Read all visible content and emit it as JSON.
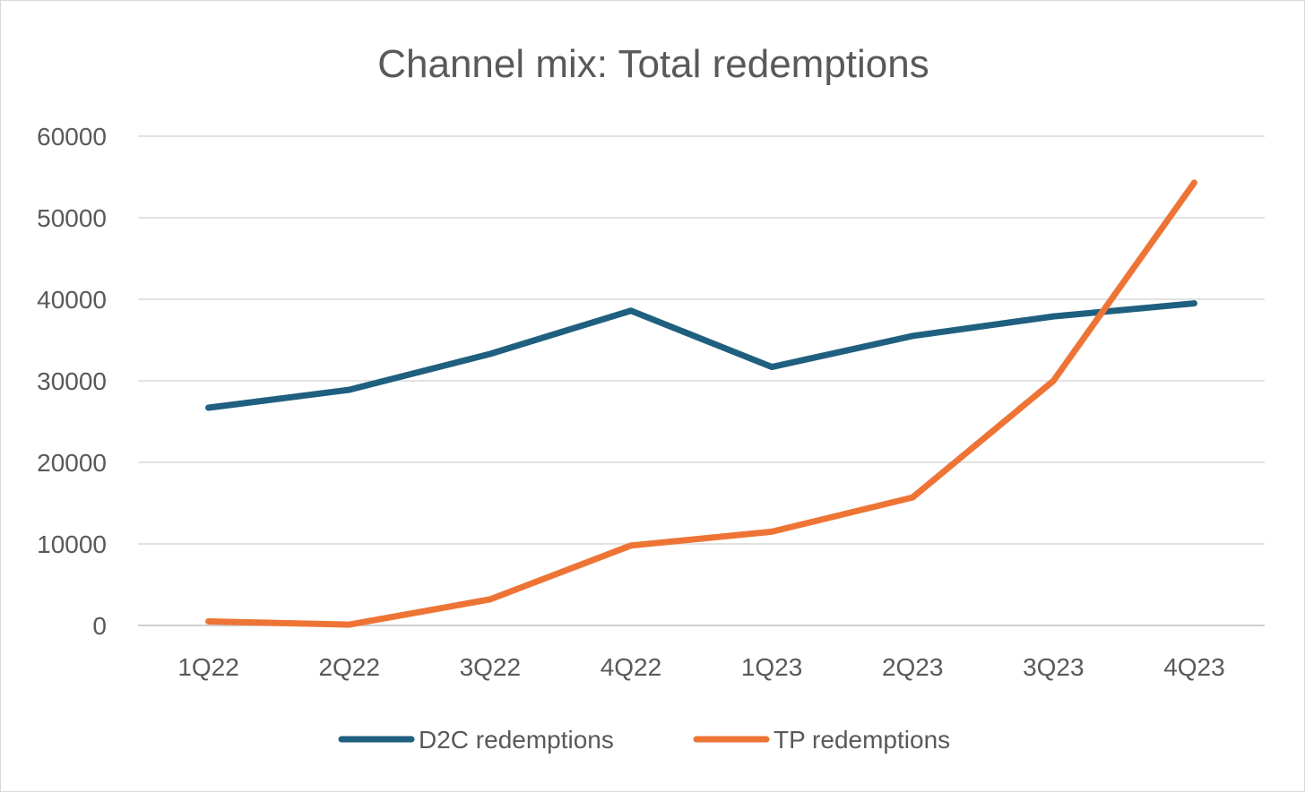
{
  "chart_data": {
    "type": "line",
    "title": "Channel mix: Total redemptions",
    "xlabel": "",
    "ylabel": "",
    "categories": [
      "1Q22",
      "2Q22",
      "3Q22",
      "4Q22",
      "1Q23",
      "2Q23",
      "3Q23",
      "4Q23"
    ],
    "ylim": [
      0,
      60000
    ],
    "yticks": [
      0,
      10000,
      20000,
      30000,
      40000,
      50000,
      60000
    ],
    "grid": true,
    "legend_position": "bottom",
    "series": [
      {
        "name": "D2C redemptions",
        "color": "#1f5f7f",
        "values": [
          26700,
          28900,
          33300,
          38600,
          31700,
          35500,
          37900,
          39500
        ]
      },
      {
        "name": "TP redemptions",
        "color": "#ee7435",
        "values": [
          500,
          100,
          3200,
          9800,
          11500,
          15700,
          30000,
          54300
        ]
      }
    ]
  }
}
